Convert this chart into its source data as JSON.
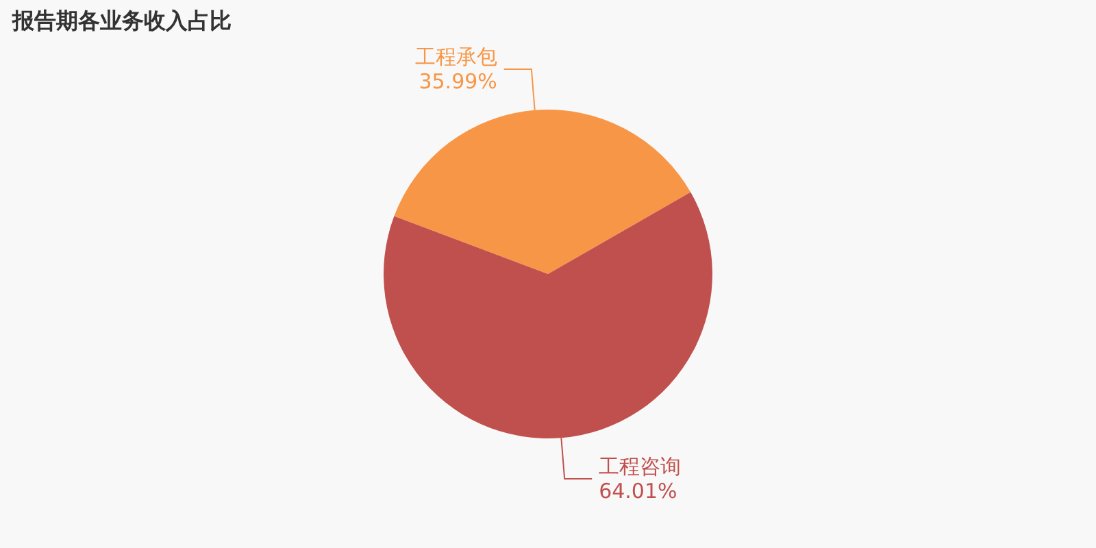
{
  "chart_data": {
    "type": "pie",
    "title": "报告期各业务收入占比",
    "categories": [
      "工程承包",
      "工程咨询"
    ],
    "values": [
      35.99,
      64.01
    ],
    "colors": [
      "#f79646",
      "#c0504d"
    ],
    "value_labels": [
      "35.99%",
      "64.01%"
    ],
    "legend": false
  }
}
